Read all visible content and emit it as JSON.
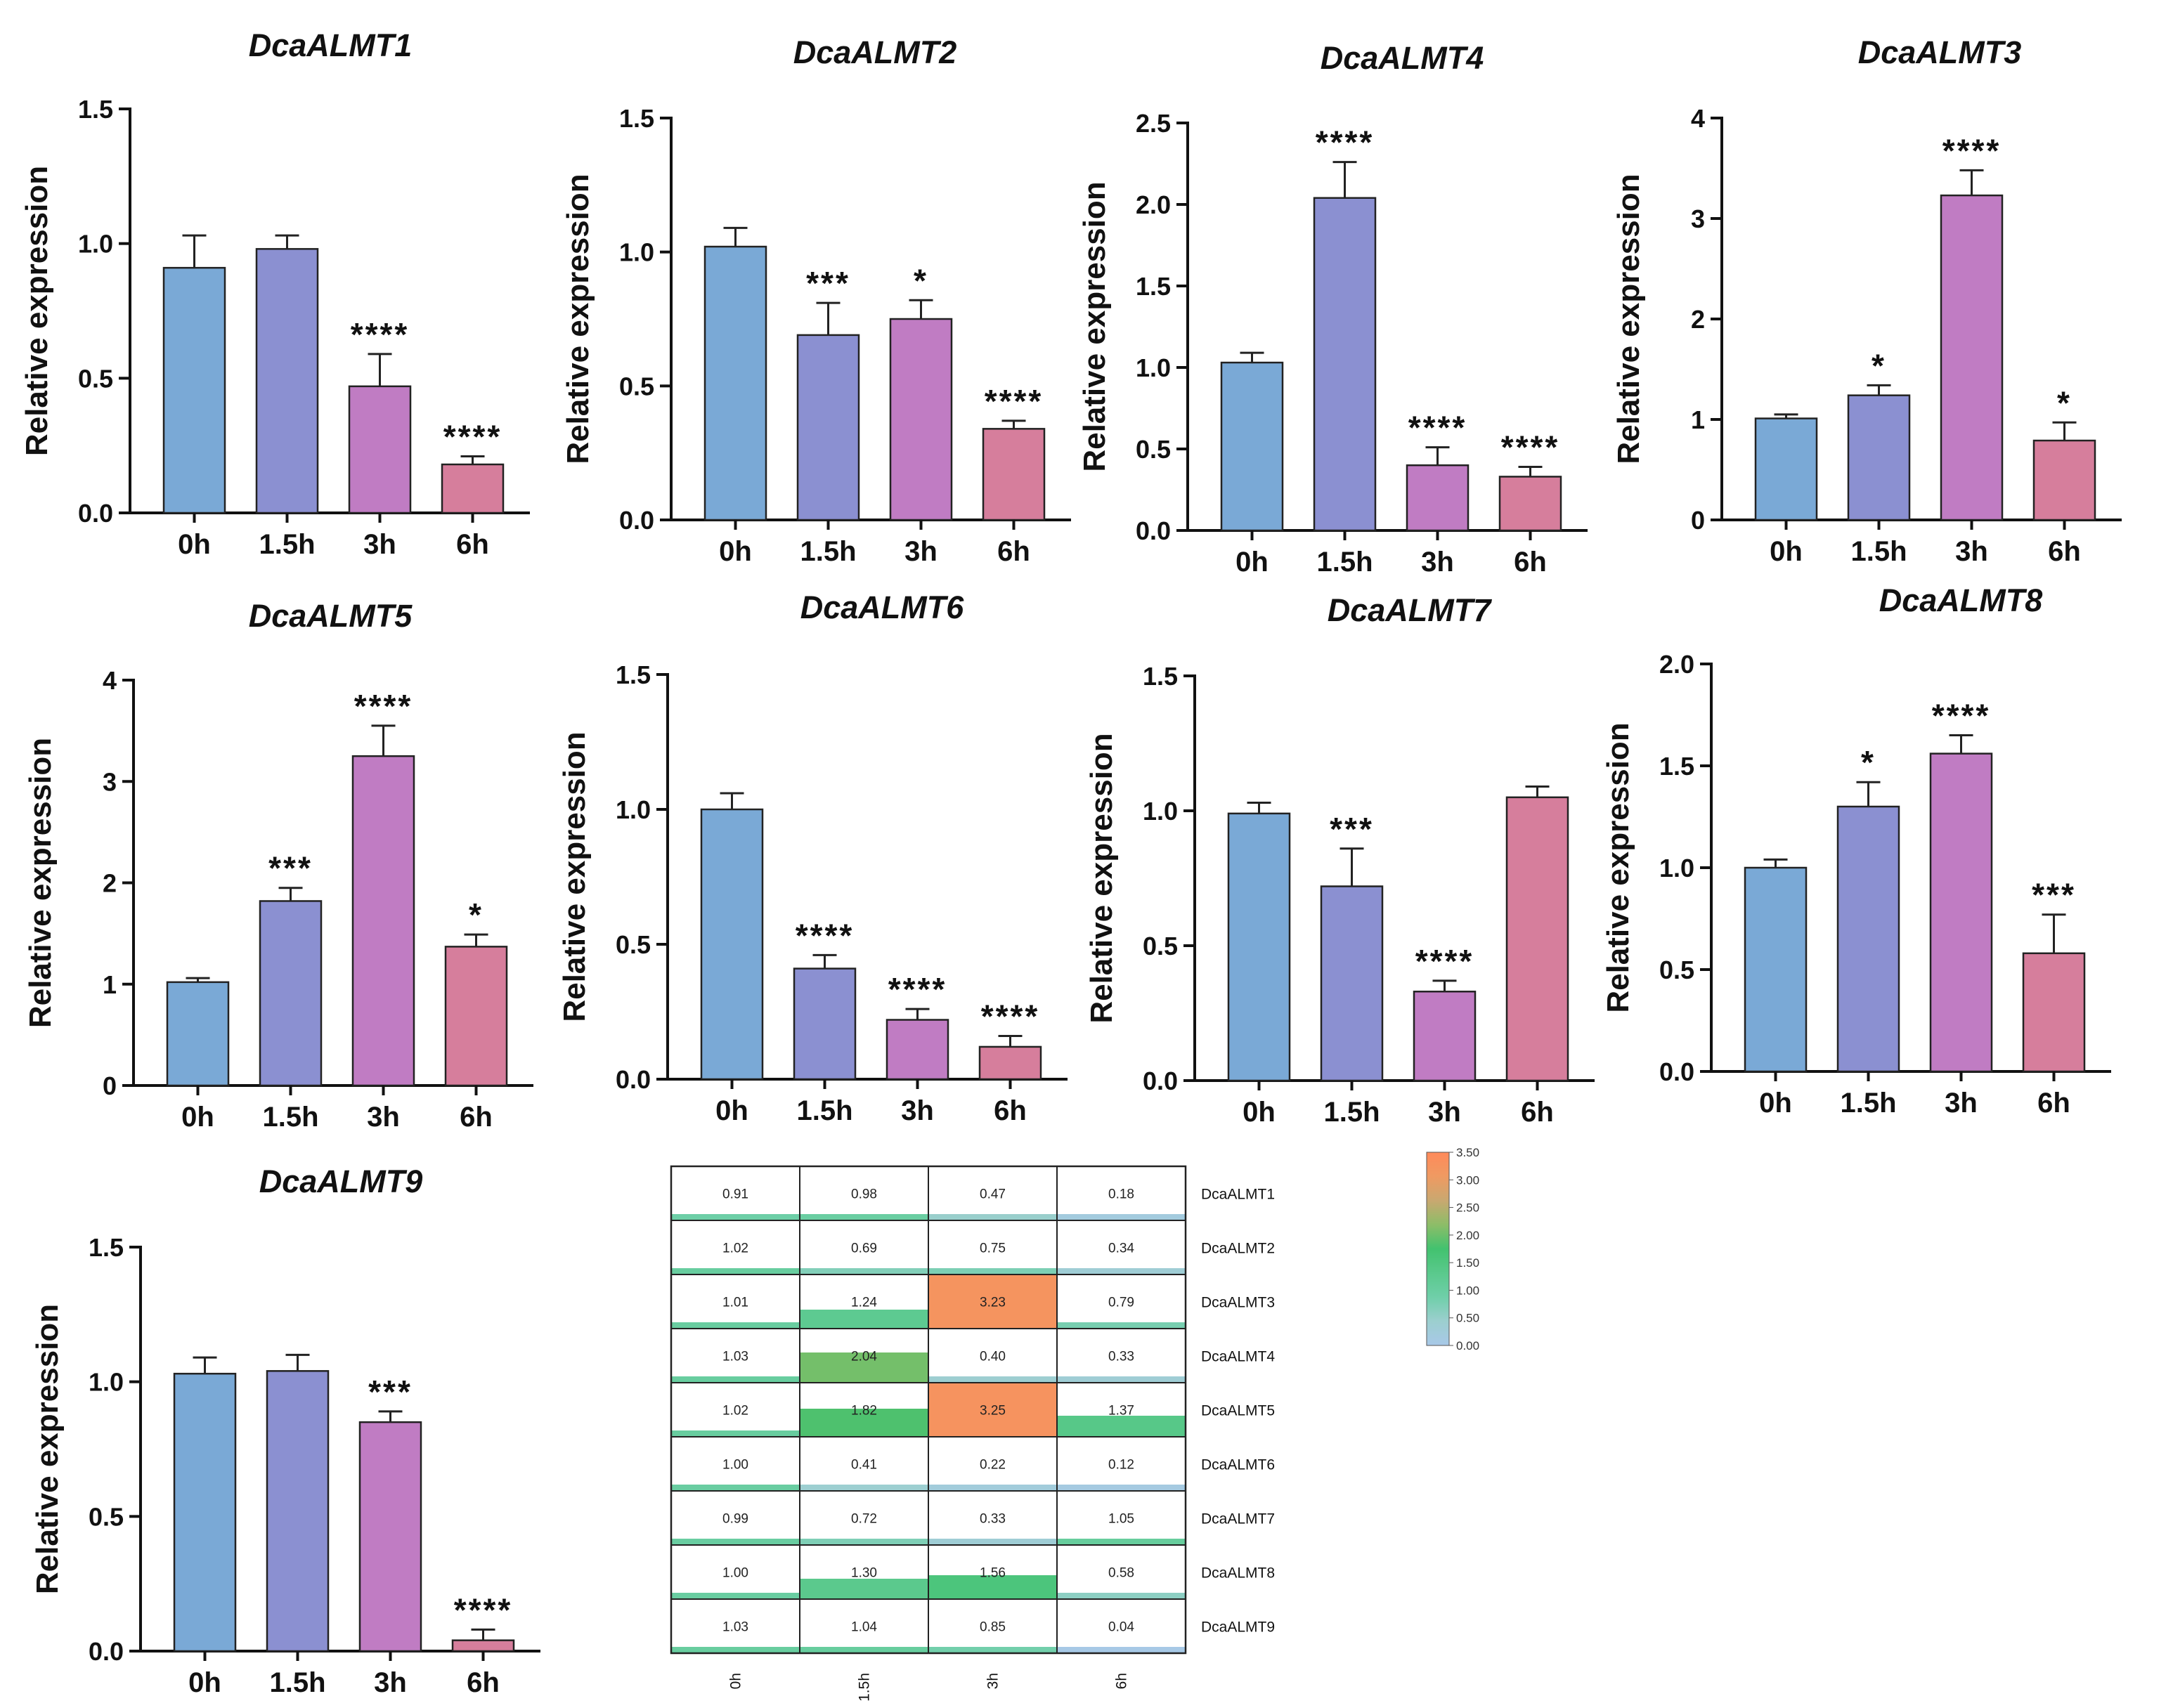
{
  "colors": {
    "bars": [
      "#7aa9d6",
      "#8b90d1",
      "#c07cc3",
      "#d67e9c"
    ],
    "heat_stops": [
      "#a8c8e8",
      "#9ccfcf",
      "#6fcfa9",
      "#5ac98c",
      "#42c26f",
      "#8dbd68",
      "#c9a870",
      "#ef9a62",
      "#ff8a5a"
    ]
  },
  "chart_data": [
    {
      "type": "bar",
      "title": "DcaALMT1",
      "ylabel": "Relative expression",
      "categories": [
        "0h",
        "1.5h",
        "3h",
        "6h"
      ],
      "values": [
        0.91,
        0.98,
        0.47,
        0.18
      ],
      "errors": [
        0.12,
        0.05,
        0.12,
        0.03
      ],
      "significance": [
        "",
        "",
        "****",
        "****"
      ],
      "ylim": [
        0,
        1.5
      ],
      "yticks": [
        0.0,
        0.5,
        1.0,
        1.5
      ],
      "yticklabels": [
        "0.0",
        "0.5",
        "1.0",
        "1.5"
      ]
    },
    {
      "type": "bar",
      "title": "DcaALMT2",
      "ylabel": "Relative expression",
      "categories": [
        "0h",
        "1.5h",
        "3h",
        "6h"
      ],
      "values": [
        1.02,
        0.69,
        0.75,
        0.34
      ],
      "errors": [
        0.07,
        0.12,
        0.07,
        0.03
      ],
      "significance": [
        "",
        "***",
        "*",
        "****"
      ],
      "ylim": [
        0,
        1.5
      ],
      "yticks": [
        0.0,
        0.5,
        1.0,
        1.5
      ],
      "yticklabels": [
        "0.0",
        "0.5",
        "1.0",
        "1.5"
      ]
    },
    {
      "type": "bar",
      "title": "DcaALMT4",
      "ylabel": "Relative expression",
      "categories": [
        "0h",
        "1.5h",
        "3h",
        "6h"
      ],
      "values": [
        1.03,
        2.04,
        0.4,
        0.33
      ],
      "errors": [
        0.06,
        0.22,
        0.11,
        0.06
      ],
      "significance": [
        "",
        "****",
        "****",
        "****"
      ],
      "ylim": [
        0,
        2.5
      ],
      "yticks": [
        0.0,
        0.5,
        1.0,
        1.5,
        2.0,
        2.5
      ],
      "yticklabels": [
        "0.0",
        "0.5",
        "1.0",
        "1.5",
        "2.0",
        "2.5"
      ]
    },
    {
      "type": "bar",
      "title": "DcaALMT3",
      "ylabel": "Relative expression",
      "categories": [
        "0h",
        "1.5h",
        "3h",
        "6h"
      ],
      "values": [
        1.01,
        1.24,
        3.23,
        0.79
      ],
      "errors": [
        0.04,
        0.1,
        0.25,
        0.18
      ],
      "significance": [
        "",
        "*",
        "****",
        "*"
      ],
      "ylim": [
        0,
        4
      ],
      "yticks": [
        0,
        1,
        2,
        3,
        4
      ],
      "yticklabels": [
        "0",
        "1",
        "2",
        "3",
        "4"
      ]
    },
    {
      "type": "bar",
      "title": "DcaALMT5",
      "ylabel": "Relative expression",
      "categories": [
        "0h",
        "1.5h",
        "3h",
        "6h"
      ],
      "values": [
        1.02,
        1.82,
        3.25,
        1.37
      ],
      "errors": [
        0.04,
        0.13,
        0.3,
        0.12
      ],
      "significance": [
        "",
        "***",
        "****",
        "*"
      ],
      "ylim": [
        0,
        4
      ],
      "yticks": [
        0,
        1,
        2,
        3,
        4
      ],
      "yticklabels": [
        "0",
        "1",
        "2",
        "3",
        "4"
      ]
    },
    {
      "type": "bar",
      "title": "DcaALMT6",
      "ylabel": "Relative expression",
      "categories": [
        "0h",
        "1.5h",
        "3h",
        "6h"
      ],
      "values": [
        1.0,
        0.41,
        0.22,
        0.12
      ],
      "errors": [
        0.06,
        0.05,
        0.04,
        0.04
      ],
      "significance": [
        "",
        "****",
        "****",
        "****"
      ],
      "ylim": [
        0,
        1.5
      ],
      "yticks": [
        0.0,
        0.5,
        1.0,
        1.5
      ],
      "yticklabels": [
        "0.0",
        "0.5",
        "1.0",
        "1.5"
      ]
    },
    {
      "type": "bar",
      "title": "DcaALMT7",
      "ylabel": "Relative expression",
      "categories": [
        "0h",
        "1.5h",
        "3h",
        "6h"
      ],
      "values": [
        0.99,
        0.72,
        0.33,
        1.05
      ],
      "errors": [
        0.04,
        0.14,
        0.04,
        0.04
      ],
      "significance": [
        "",
        "***",
        "****",
        ""
      ],
      "ylim": [
        0,
        1.5
      ],
      "yticks": [
        0.0,
        0.5,
        1.0,
        1.5
      ],
      "yticklabels": [
        "0.0",
        "0.5",
        "1.0",
        "1.5"
      ]
    },
    {
      "type": "bar",
      "title": "DcaALMT8",
      "ylabel": "Relative expression",
      "categories": [
        "0h",
        "1.5h",
        "3h",
        "6h"
      ],
      "values": [
        1.0,
        1.3,
        1.56,
        0.58
      ],
      "errors": [
        0.04,
        0.12,
        0.09,
        0.19
      ],
      "significance": [
        "",
        "*",
        "****",
        "***"
      ],
      "ylim": [
        0,
        2.0
      ],
      "yticks": [
        0.0,
        0.5,
        1.0,
        1.5,
        2.0
      ],
      "yticklabels": [
        "0.0",
        "0.5",
        "1.0",
        "1.5",
        "2.0"
      ]
    },
    {
      "type": "bar",
      "title": "DcaALMT9",
      "ylabel": "Relative expression",
      "categories": [
        "0h",
        "1.5h",
        "3h",
        "6h"
      ],
      "values": [
        1.03,
        1.04,
        0.85,
        0.04
      ],
      "errors": [
        0.06,
        0.06,
        0.04,
        0.04
      ],
      "significance": [
        "",
        "",
        "***",
        "****"
      ],
      "ylim": [
        0,
        1.5
      ],
      "yticks": [
        0.0,
        0.5,
        1.0,
        1.5
      ],
      "yticklabels": [
        "0.0",
        "0.5",
        "1.0",
        "1.5"
      ]
    },
    {
      "type": "heatmap",
      "rows": [
        "DcaALMT1",
        "DcaALMT2",
        "DcaALMT3",
        "DcaALMT4",
        "DcaALMT5",
        "DcaALMT6",
        "DcaALMT7",
        "DcaALMT8",
        "DcaALMT9"
      ],
      "columns": [
        "0h",
        "1.5h",
        "3h",
        "6h"
      ],
      "values": [
        [
          0.91,
          0.98,
          0.47,
          0.18
        ],
        [
          1.02,
          0.69,
          0.75,
          0.34
        ],
        [
          1.01,
          1.24,
          3.23,
          0.79
        ],
        [
          1.03,
          2.04,
          0.4,
          0.33
        ],
        [
          1.02,
          1.82,
          3.25,
          1.37
        ],
        [
          1.0,
          0.41,
          0.22,
          0.12
        ],
        [
          0.99,
          0.72,
          0.33,
          1.05
        ],
        [
          1.0,
          1.3,
          1.56,
          0.58
        ],
        [
          1.03,
          1.04,
          0.85,
          0.04
        ]
      ],
      "cell_labels": [
        [
          "0.91",
          "0.98",
          "0.47",
          "0.18"
        ],
        [
          "1.02",
          "0.69",
          "0.75",
          "0.34"
        ],
        [
          "1.01",
          "1.24",
          "3.23",
          "0.79"
        ],
        [
          "1.03",
          "2.04",
          "0.40",
          "0.33"
        ],
        [
          "1.02",
          "1.82",
          "3.25",
          "1.37"
        ],
        [
          "1.00",
          "0.41",
          "0.22",
          "0.12"
        ],
        [
          "0.99",
          "0.72",
          "0.33",
          "1.05"
        ],
        [
          "1.00",
          "1.30",
          "1.56",
          "0.58"
        ],
        [
          "1.03",
          "1.04",
          "0.85",
          "0.04"
        ]
      ],
      "scale_min": 0,
      "scale_max": 3.5,
      "legend_ticks": [
        "3.50",
        "3.00",
        "2.50",
        "2.00",
        "1.50",
        "1.00",
        "0.50",
        "0.00"
      ]
    }
  ]
}
